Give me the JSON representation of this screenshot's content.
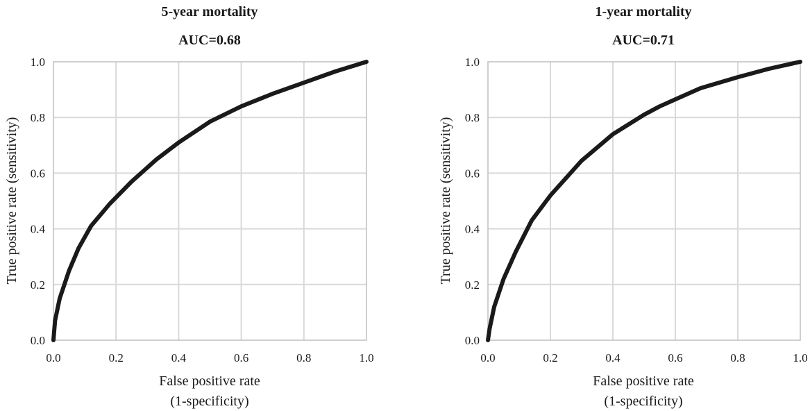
{
  "chart_data": [
    {
      "type": "line",
      "title": "5-year mortality",
      "subtitle": "AUC=0.68",
      "xlabel": [
        "False positive rate",
        "(1-specificity)"
      ],
      "ylabel": "True positive rate (sensitivity)",
      "xlim": [
        0,
        1
      ],
      "ylim": [
        0,
        1
      ],
      "x_ticks": [
        "0.0",
        "0.2",
        "0.4",
        "0.6",
        "0.8",
        "1.0"
      ],
      "y_ticks": [
        "0.0",
        "0.2",
        "0.4",
        "0.6",
        "0.8",
        "1.0"
      ],
      "grid": true,
      "series": [
        {
          "x": [
            0,
            0.005,
            0.02,
            0.05,
            0.08,
            0.12,
            0.18,
            0.25,
            0.33,
            0.4,
            0.5,
            0.6,
            0.7,
            0.8,
            0.9,
            1.0
          ],
          "y": [
            0,
            0.07,
            0.15,
            0.25,
            0.33,
            0.41,
            0.49,
            0.57,
            0.65,
            0.71,
            0.785,
            0.84,
            0.885,
            0.925,
            0.965,
            1.0
          ]
        }
      ],
      "line_color": "#1a1a1a"
    },
    {
      "type": "line",
      "title": "1-year mortality",
      "subtitle": "AUC=0.71",
      "xlabel": [
        "False positive rate",
        "(1-specificity)"
      ],
      "ylabel": "True positive rate (sensitivity)",
      "xlim": [
        0,
        1
      ],
      "ylim": [
        0,
        1
      ],
      "x_ticks": [
        "0.0",
        "0.2",
        "0.4",
        "0.6",
        "0.8",
        "1.0"
      ],
      "y_ticks": [
        "0.0",
        "0.2",
        "0.4",
        "0.6",
        "0.8",
        "1.0"
      ],
      "grid": true,
      "series": [
        {
          "x": [
            0,
            0.005,
            0.02,
            0.05,
            0.09,
            0.14,
            0.2,
            0.3,
            0.4,
            0.5,
            0.55,
            0.6,
            0.68,
            0.8,
            0.9,
            1.0
          ],
          "y": [
            0,
            0.04,
            0.12,
            0.22,
            0.32,
            0.43,
            0.52,
            0.645,
            0.74,
            0.81,
            0.84,
            0.865,
            0.905,
            0.945,
            0.975,
            1.0
          ]
        }
      ],
      "line_color": "#1a1a1a"
    }
  ]
}
